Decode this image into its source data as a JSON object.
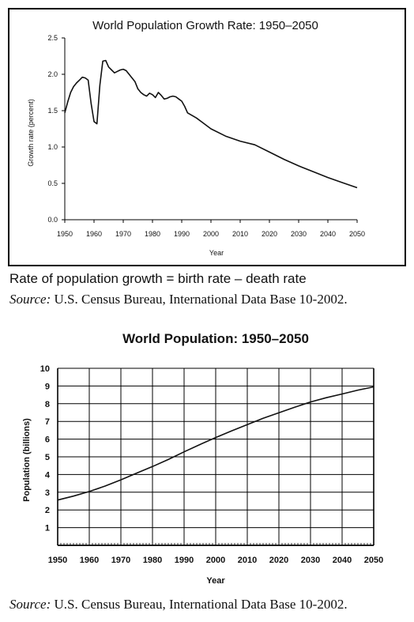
{
  "chart_data": [
    {
      "type": "line",
      "title": "World Population Growth Rate: 1950–2050",
      "xlabel": "Year",
      "ylabel": "Growth rate (percent)",
      "xlim": [
        1950,
        2050
      ],
      "ylim": [
        0,
        2.5
      ],
      "x_ticks": [
        "1950",
        "1960",
        "1970",
        "1980",
        "1990",
        "2000",
        "2010",
        "2020",
        "2030",
        "2040",
        "2050"
      ],
      "y_ticks": [
        "0.0",
        "0.5",
        "1.0",
        "1.5",
        "2.0",
        "2.5"
      ],
      "grid": false,
      "series": [
        {
          "x": [
            1950,
            1951,
            1952,
            1953,
            1954,
            1955,
            1956,
            1957,
            1958,
            1959,
            1960,
            1961,
            1962,
            1963,
            1964,
            1965,
            1966,
            1967,
            1968,
            1969,
            1970,
            1971,
            1972,
            1973,
            1974,
            1975,
            1976,
            1977,
            1978,
            1979,
            1980,
            1981,
            1982,
            1983,
            1984,
            1985,
            1986,
            1987,
            1988,
            1989,
            1990,
            1991,
            1992,
            1995,
            2000,
            2005,
            2010,
            2015,
            2020,
            2025,
            2030,
            2035,
            2040,
            2045,
            2050
          ],
          "values": [
            1.47,
            1.62,
            1.75,
            1.83,
            1.88,
            1.92,
            1.96,
            1.95,
            1.92,
            1.6,
            1.35,
            1.32,
            1.85,
            2.18,
            2.19,
            2.1,
            2.06,
            2.02,
            2.04,
            2.06,
            2.07,
            2.05,
            2.0,
            1.95,
            1.9,
            1.8,
            1.75,
            1.72,
            1.7,
            1.74,
            1.72,
            1.68,
            1.75,
            1.71,
            1.66,
            1.67,
            1.69,
            1.7,
            1.69,
            1.66,
            1.63,
            1.56,
            1.47,
            1.4,
            1.25,
            1.15,
            1.08,
            1.03,
            0.93,
            0.83,
            0.74,
            0.66,
            0.58,
            0.51,
            0.44
          ]
        }
      ]
    },
    {
      "type": "line",
      "title": "World Population: 1950–2050",
      "xlabel": "Year",
      "ylabel": "Population (billions)",
      "xlim": [
        1950,
        2050
      ],
      "ylim": [
        0,
        10
      ],
      "x_ticks": [
        "1950",
        "1960",
        "1970",
        "1980",
        "1990",
        "2000",
        "2010",
        "2020",
        "2030",
        "2040",
        "2050"
      ],
      "y_ticks": [
        "1",
        "2",
        "3",
        "4",
        "5",
        "6",
        "7",
        "8",
        "9",
        "10"
      ],
      "grid": true,
      "series": [
        {
          "x": [
            1950,
            1955,
            1960,
            1965,
            1970,
            1975,
            1980,
            1985,
            1990,
            1995,
            2000,
            2005,
            2010,
            2015,
            2020,
            2025,
            2030,
            2035,
            2040,
            2045,
            2050
          ],
          "values": [
            2.56,
            2.78,
            3.04,
            3.35,
            3.7,
            4.08,
            4.45,
            4.85,
            5.28,
            5.69,
            6.09,
            6.46,
            6.82,
            7.18,
            7.49,
            7.8,
            8.1,
            8.34,
            8.55,
            8.77,
            8.95
          ]
        }
      ]
    }
  ],
  "captions": {
    "formula": "Rate of population growth = birth rate – death rate",
    "source_label": "Source:",
    "source_text": " U.S. Census Bureau, International Data Base 10-2002."
  }
}
